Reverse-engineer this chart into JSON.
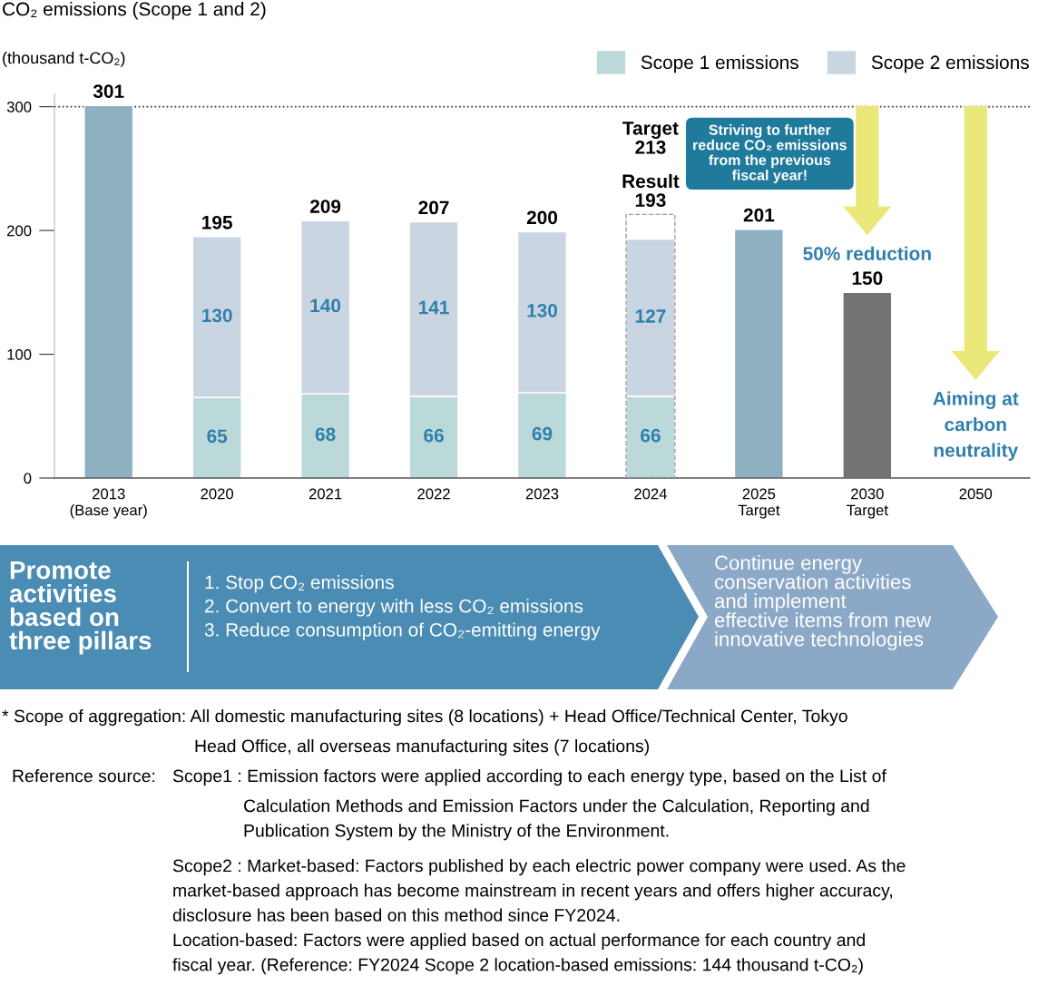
{
  "chart_data": [
    {
      "type": "bar",
      "title": "CO₂ emissions (Scope 1 and 2)",
      "ylabel": "(thousand t-CO₂)",
      "categories": [
        "2013\n(Base year)",
        "2020",
        "2021",
        "2022",
        "2023",
        "2024",
        "2025\nTarget",
        "2030\nTarget",
        "2050"
      ],
      "stacked": true,
      "ylim": [
        0,
        310
      ],
      "yticks": [
        0,
        100,
        200,
        300
      ],
      "grid": false,
      "legend": "top right",
      "series": [
        {
          "colors": [
            "#8eb1c2",
            null,
            null,
            null,
            null,
            null,
            "#8eb1c2",
            "#737373",
            null
          ],
          "values": [
            301,
            null,
            null,
            null,
            null,
            null,
            201,
            150,
            null
          ],
          "value_labels": [
            "301",
            null,
            null,
            null,
            null,
            null,
            "201",
            "150",
            null
          ]
        },
        {
          "name": "Scope 1 emissions",
          "color": "#bcd9da",
          "values": [
            null,
            65,
            68,
            66,
            69,
            66,
            null,
            null,
            null
          ],
          "value_labels": [
            null,
            "65",
            "68",
            "66",
            "69",
            "66",
            null,
            null,
            null
          ]
        },
        {
          "name": "Scope 2 emissions",
          "color": "#c9d5e1",
          "values": [
            null,
            130,
            140,
            141,
            130,
            127,
            null,
            null,
            null
          ],
          "value_labels": [
            null,
            "130",
            "140",
            "141",
            "130",
            "127",
            null,
            null,
            null
          ]
        }
      ],
      "totals": [
        null,
        "195",
        "209",
        "207",
        "200",
        "Result\n193",
        null,
        null,
        null
      ],
      "ref_lines": [
        {
          "axis": "y",
          "value": 300,
          "color": "#333333",
          "line_style": "dotted"
        }
      ],
      "annotations": [
        "Striving to further\nreduce CO₂ emissions\nfrom the previous\nfiscal year!",
        "50% reduction",
        "Aiming at\ncarbon\nneutrality",
        "Promote\nactivities\nbased on\nthree pillars",
        "1. Stop CO₂ emissions\n2. Convert to energy with less CO₂ emissions\n3. Reduce consumption of CO₂-emitting energy",
        "Continue energy\nconservation activities\nand implement\neffective items from new\ninnovative technologies",
        "* Scope of aggregation: All domestic manufacturing sites (8 locations) + Head Office/Technical Center, Tokyo",
        "Head Office, all overseas manufacturing sites (7 locations)",
        "Reference source:",
        "Scope1 : Emission factors were applied according to each energy type, based on the List of",
        "Calculation Methods and Emission Factors under the Calculation, Reporting and\nPublication System by the Ministry of the Environment.",
        "Scope2 : Market-based: Factors published by each electric power company were used. As the\nmarket-based approach has become mainstream in recent years and offers higher accuracy,\ndisclosure has been based on this method since FY2024.\nLocation-based: Factors were applied based on actual performance for each country and\nfiscal year. (Reference: FY2024 Scope 2 location-based emissions: 144 thousand t-CO₂)"
      ]
    },
    {
      "type": "bar",
      "ylim": [
        0,
        310
      ],
      "yticks": [
        0,
        100,
        200,
        300
      ],
      "tick_labels": false,
      "series": [
        {
          "color": "#a0a0a0",
          "line_style": "dashed",
          "values": [
            null,
            null,
            null,
            null,
            null,
            213,
            null,
            null,
            null
          ],
          "value_labels": [
            null,
            null,
            null,
            null,
            null,
            "Target\n213",
            null,
            null,
            null
          ]
        }
      ]
    }
  ]
}
